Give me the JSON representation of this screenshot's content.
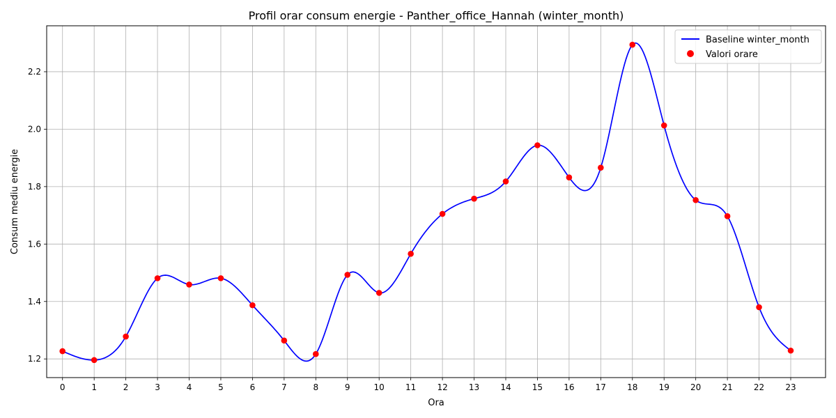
{
  "chart_data": {
    "type": "line",
    "title": "Profil orar consum energie - Panther_office_Hannah (winter_month)",
    "xlabel": "Ora",
    "ylabel": "Consum mediu energie",
    "xlim": [
      -0.5,
      24.1
    ],
    "ylim": [
      1.135,
      2.36
    ],
    "grid": true,
    "legend_position": "top-right",
    "x_ticks": [
      "0",
      "1",
      "2",
      "3",
      "4",
      "5",
      "6",
      "7",
      "8",
      "9",
      "10",
      "11",
      "12",
      "13",
      "14",
      "15",
      "16",
      "17",
      "18",
      "19",
      "20",
      "21",
      "22",
      "23"
    ],
    "y_ticks": [
      "1.2",
      "1.4",
      "1.6",
      "1.8",
      "2.0",
      "2.2"
    ],
    "y_tick_values": [
      1.2,
      1.4,
      1.6,
      1.8,
      2.0,
      2.2
    ],
    "series": [
      {
        "name": "Baseline winter_month",
        "kind": "line",
        "color": "#0000ff",
        "x": [
          0,
          1,
          2,
          3,
          4,
          5,
          6,
          7,
          8,
          9,
          10,
          11,
          12,
          13,
          14,
          15,
          16,
          17,
          18,
          19,
          20,
          21,
          22,
          23
        ],
        "values": [
          1.227,
          1.196,
          1.278,
          1.481,
          1.459,
          1.481,
          1.387,
          1.264,
          1.217,
          1.493,
          1.43,
          1.566,
          1.705,
          1.758,
          1.818,
          1.944,
          1.832,
          1.866,
          2.294,
          2.013,
          1.753,
          1.697,
          1.38,
          1.229
        ]
      },
      {
        "name": "Valori orare",
        "kind": "scatter",
        "color": "#ff0000",
        "x": [
          0,
          1,
          2,
          3,
          4,
          5,
          6,
          7,
          8,
          9,
          10,
          11,
          12,
          13,
          14,
          15,
          16,
          17,
          18,
          19,
          20,
          21,
          22,
          23
        ],
        "values": [
          1.227,
          1.196,
          1.278,
          1.481,
          1.459,
          1.481,
          1.387,
          1.264,
          1.217,
          1.493,
          1.43,
          1.566,
          1.705,
          1.758,
          1.818,
          1.944,
          1.832,
          1.866,
          2.294,
          2.013,
          1.753,
          1.697,
          1.38,
          1.229
        ]
      }
    ]
  }
}
